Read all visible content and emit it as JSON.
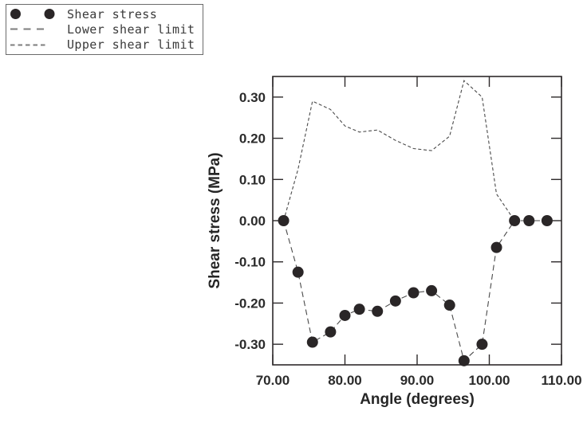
{
  "chart_data": {
    "type": "scatter",
    "title": "",
    "xlabel": "Angle (degrees)",
    "ylabel": "Shear stress (MPa)",
    "xlim": [
      70,
      110
    ],
    "ylim": [
      -0.35,
      0.35
    ],
    "grid": false,
    "xticks": {
      "values": [
        70,
        80,
        90,
        100,
        110
      ],
      "labels": [
        "70.00",
        "80.00",
        "90.00",
        "100.00",
        "110.00"
      ]
    },
    "yticks": {
      "values": [
        0.3,
        0.2,
        0.1,
        0.0,
        -0.1,
        -0.2,
        -0.3
      ],
      "labels": [
        "0.30",
        "0.20",
        "0.10",
        "0.00",
        "-0.10",
        "-0.20",
        "-0.30"
      ]
    },
    "x": [
      71.5,
      73.5,
      75.5,
      78,
      80,
      82,
      84.5,
      87,
      89.5,
      92,
      94.5,
      96.5,
      99,
      101,
      103.5,
      105.5,
      108
    ],
    "series": [
      {
        "name": "Shear stress",
        "style": "scatter",
        "marker": "filled-circle",
        "values": [
          0.0,
          -0.125,
          -0.295,
          -0.27,
          -0.23,
          -0.215,
          -0.22,
          -0.195,
          -0.175,
          -0.17,
          -0.205,
          -0.34,
          -0.3,
          -0.065,
          0.0,
          0.0,
          0.0
        ]
      },
      {
        "name": "Lower shear limit",
        "style": "dashed-line",
        "dash": "long",
        "values": [
          0.0,
          -0.125,
          -0.295,
          -0.27,
          -0.23,
          -0.215,
          -0.22,
          -0.195,
          -0.175,
          -0.17,
          -0.205,
          -0.34,
          -0.3,
          -0.065,
          0.0,
          0.0,
          0.0
        ]
      },
      {
        "name": "Upper shear limit",
        "style": "dashed-line",
        "dash": "short",
        "values": [
          0.0,
          0.125,
          0.29,
          0.27,
          0.23,
          0.215,
          0.22,
          0.195,
          0.175,
          0.17,
          0.205,
          0.34,
          0.3,
          0.065,
          0.0,
          0.0,
          0.0
        ]
      }
    ],
    "legend": {
      "position": "top-left-outside",
      "entries": [
        {
          "label": "Shear stress",
          "marker": "dots"
        },
        {
          "label": "Lower shear limit",
          "marker": "long-dash"
        },
        {
          "label": "Upper shear limit",
          "marker": "short-dash"
        }
      ]
    },
    "colors": {
      "marker": "#2a2627",
      "line": "#4a4a4a",
      "frame": "#2e2a2b",
      "text": "#262626",
      "legend_dash": "#7d7d7d",
      "background": "#ffffff"
    }
  }
}
